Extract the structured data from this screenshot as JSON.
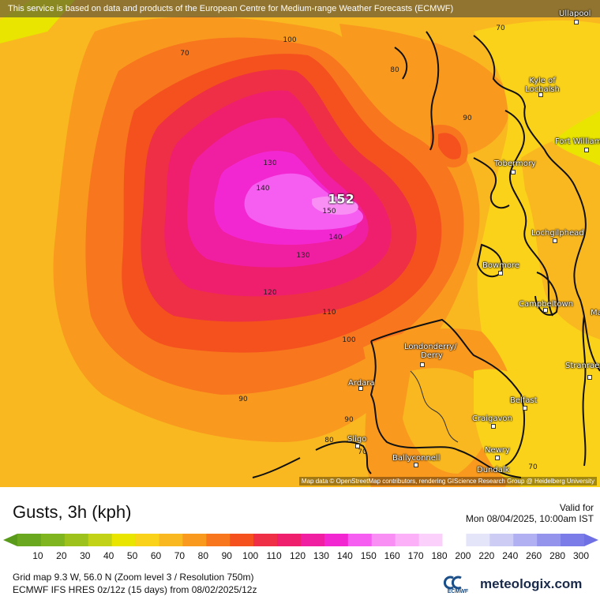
{
  "banner": "This service is based on data and products of the European Centre for Medium-range Weather Forecasts (ECMWF)",
  "attribution": "Map data © OpenStreetMap contributors, rendering GIScience Research Group @ Heidelberg University",
  "title": "Gusts, 3h (kph)",
  "valid_label": "Valid for",
  "valid_time": "Mon 08/04/2025, 10:00am IST",
  "meta_line1": "Grid map 9.3 W, 56.0 N (Zoom level 3 / Resolution 750m)",
  "meta_line2": "ECMWF IFS HRES 0z/12z (15 days) from 08/02/2025/12z",
  "ecmwf_label": "ECMWF",
  "brand": "meteologix.com",
  "max_value": "152",
  "contour_labels": [
    "70",
    "100",
    "80",
    "90",
    "130",
    "140",
    "150",
    "140",
    "130",
    "120",
    "110",
    "100",
    "90",
    "90",
    "80",
    "70",
    "70",
    "70"
  ],
  "places": [
    "Ullapool",
    "Kyle of Lochalsh",
    "Fort William",
    "Tobermory",
    "Lochgilphead",
    "Bowmore",
    "Campbeltown",
    "Ma",
    "Londonderry/",
    "Derry",
    "Stranraer",
    "Ardara",
    "Belfast",
    "Craigavon",
    "Sligo",
    "Ballyconnell",
    "Newry",
    "Dundalk"
  ],
  "legend": {
    "ticks": [
      "10",
      "20",
      "30",
      "40",
      "50",
      "60",
      "70",
      "80",
      "90",
      "100",
      "110",
      "120",
      "130",
      "140",
      "150",
      "160",
      "170",
      "180",
      "200",
      "220",
      "240",
      "260",
      "280",
      "300"
    ],
    "colors": [
      "#6aa820",
      "#7fb51e",
      "#9ec21c",
      "#c2d216",
      "#e9e400",
      "#fbd21a",
      "#f9b820",
      "#f99a1f",
      "#f8761e",
      "#f4511f",
      "#ef2f45",
      "#ef1f6e",
      "#f01ea0",
      "#f327d2",
      "#f55ef0",
      "#f98ef5",
      "#fbb0f8",
      "#fbd0fb",
      "#ffffff",
      "#e5e5f9",
      "#ccccf5",
      "#b0b0f2",
      "#9494ec",
      "#7b7ce8"
    ]
  }
}
